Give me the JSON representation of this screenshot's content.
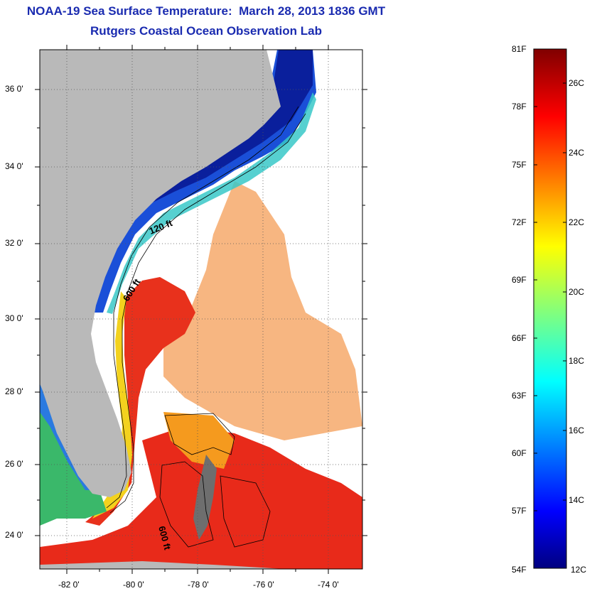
{
  "title": "NOAA-19 Sea Surface Temperature:  March 28, 2013 1836 GMT",
  "subtitle": "Rutgers Coastal Ocean Observation Lab",
  "map": {
    "lon_labels": [
      "-82 0'",
      "-80 0'",
      "-78 0'",
      "-76 0'",
      "-74 0'"
    ],
    "lat_labels": [
      "36 0'",
      "34 0'",
      "32 0'",
      "30 0'",
      "28 0'",
      "26 0'",
      "24 0'"
    ],
    "contour_labels": [
      "120 ft",
      "600 ft",
      "600 ft"
    ],
    "colors": {
      "land": "#b9b9b9",
      "no_data": "#ffffff"
    }
  },
  "colorbar": {
    "fahrenheit": [
      "81F",
      "78F",
      "75F",
      "72F",
      "69F",
      "66F",
      "63F",
      "60F",
      "57F",
      "54F"
    ],
    "celsius": [
      "26C",
      "24C",
      "22C",
      "20C",
      "18C",
      "16C",
      "14C",
      "12C"
    ]
  }
}
